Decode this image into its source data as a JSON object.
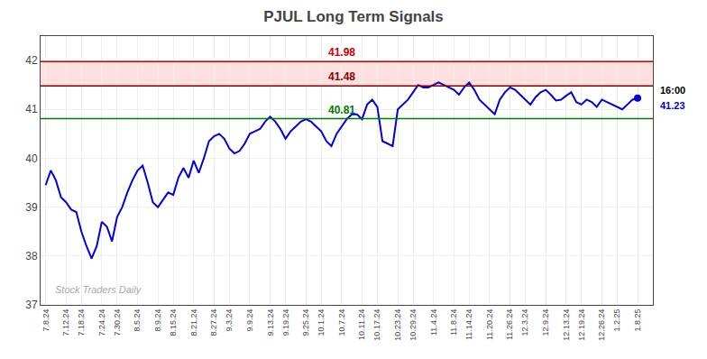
{
  "chart_data": {
    "type": "line",
    "title": "PJUL Long Term Signals",
    "categories": [
      "7.8.24",
      null,
      null,
      null,
      "7.12.24",
      null,
      null,
      "7.18.24",
      null,
      null,
      null,
      "7.24.24",
      null,
      null,
      "7.30.24",
      null,
      null,
      null,
      "8.5.24",
      null,
      null,
      null,
      "8.9.24",
      null,
      null,
      "8.15.24",
      null,
      null,
      null,
      "8.21.24",
      null,
      null,
      null,
      "8.27.24",
      null,
      null,
      "9.3.24",
      null,
      null,
      null,
      "9.9.24",
      null,
      null,
      null,
      "9.13.24",
      null,
      null,
      "9.19.24",
      null,
      null,
      null,
      "9.25.24",
      null,
      null,
      "10.1.24",
      null,
      null,
      null,
      "10.7.24",
      null,
      null,
      null,
      "10.11.24",
      null,
      null,
      "10.17.24",
      null,
      null,
      null,
      "10.23.24",
      null,
      null,
      "10.29.24",
      null,
      null,
      null,
      "11.4.24",
      null,
      null,
      null,
      "11.8.24",
      null,
      null,
      "11.14.24",
      null,
      null,
      null,
      "11.20.24",
      null,
      null,
      null,
      "11.26.24",
      null,
      null,
      "12.3.24",
      null,
      null,
      null,
      "12.9.24",
      null,
      null,
      null,
      "12.13.24",
      null,
      null,
      "12.19.24",
      null,
      null,
      null,
      "12.26.24",
      null,
      null,
      "1.2.25",
      null,
      null,
      null,
      "1.8.25"
    ],
    "values": [
      39.45,
      39.75,
      39.55,
      39.2,
      39.1,
      38.95,
      38.9,
      38.5,
      38.2,
      37.95,
      38.2,
      38.7,
      38.6,
      38.3,
      38.8,
      39.0,
      39.3,
      39.55,
      39.75,
      39.85,
      39.5,
      39.1,
      39.0,
      39.15,
      39.3,
      39.25,
      39.6,
      39.8,
      39.6,
      39.95,
      39.7,
      40.0,
      40.35,
      40.45,
      40.5,
      40.4,
      40.2,
      40.1,
      40.15,
      40.3,
      40.5,
      40.55,
      40.6,
      40.75,
      40.85,
      40.75,
      40.6,
      40.4,
      40.55,
      40.65,
      40.75,
      40.8,
      40.75,
      40.65,
      40.55,
      40.35,
      40.25,
      40.5,
      40.65,
      40.8,
      40.9,
      40.9,
      40.8,
      41.1,
      41.2,
      41.05,
      40.35,
      40.3,
      40.25,
      41.0,
      41.1,
      41.2,
      41.35,
      41.5,
      41.45,
      41.45,
      41.5,
      41.55,
      41.5,
      41.45,
      41.4,
      41.3,
      41.45,
      41.55,
      41.4,
      41.2,
      41.1,
      41.0,
      40.9,
      41.2,
      41.35,
      41.45,
      41.4,
      41.3,
      41.2,
      41.1,
      41.25,
      41.35,
      41.4,
      41.3,
      41.18,
      41.2,
      41.28,
      41.35,
      41.15,
      41.1,
      41.2,
      41.15,
      41.05,
      41.2,
      41.15,
      41.1,
      41.05,
      41.0,
      41.1,
      41.2,
      41.23
    ],
    "color": "#0000dd",
    "ylim": [
      37.0,
      42.5
    ],
    "yticks": [
      37,
      38,
      39,
      40,
      41,
      42
    ],
    "grid": true,
    "reference_lines": [
      {
        "value": 41.98,
        "label": "41.98",
        "color": "#cc0000"
      },
      {
        "value": 41.48,
        "label": "41.48",
        "color": "#880000"
      },
      {
        "value": 40.81,
        "label": "40.81",
        "color": "#007700"
      }
    ],
    "band_color": "#ffcccc",
    "last_point": {
      "label": "16:00",
      "label_color": "#000000",
      "value": 41.23,
      "value_label": "41.23",
      "value_label_color": "#0000cc"
    },
    "watermark": "Stock Traders Daily",
    "watermark_color": "#aaaaaa"
  }
}
